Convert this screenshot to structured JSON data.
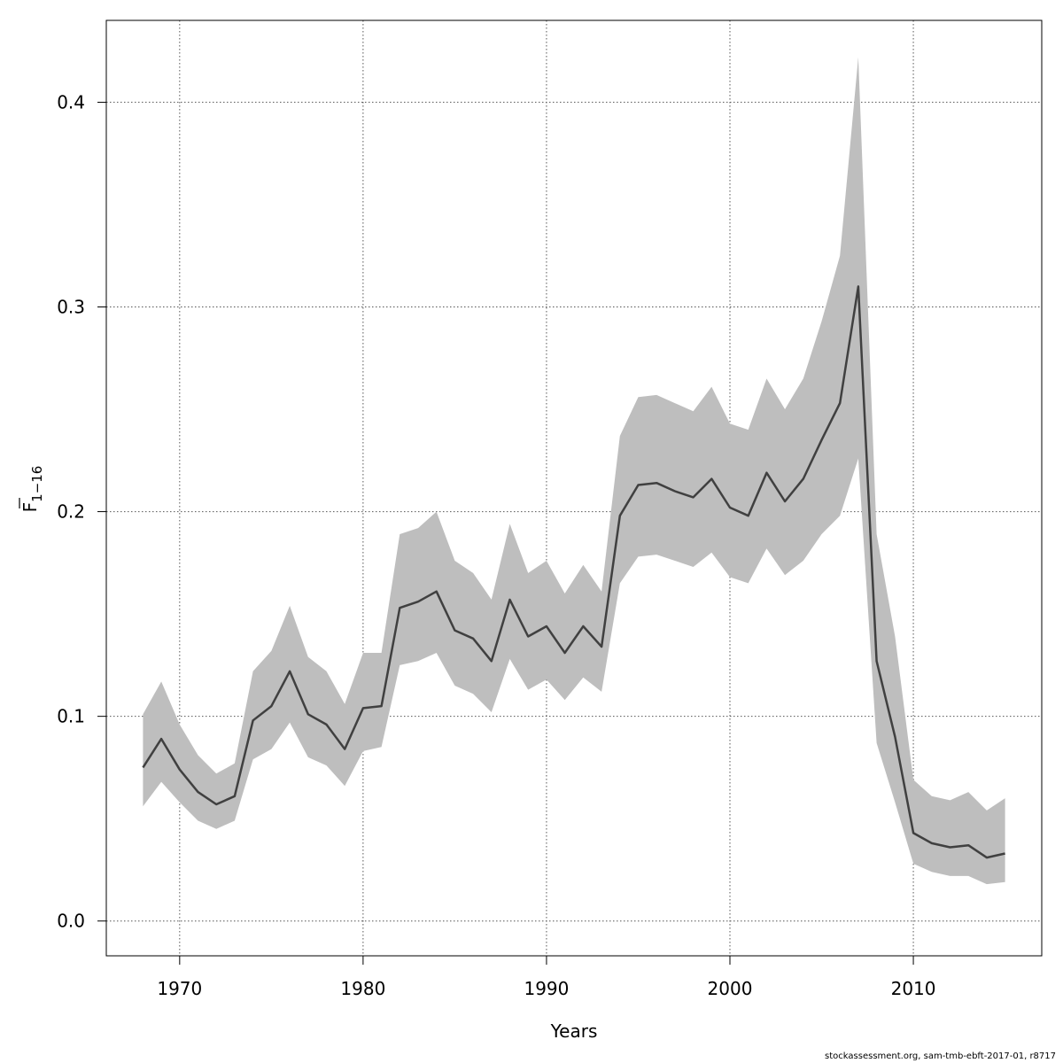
{
  "chart_data": {
    "type": "line",
    "title": "",
    "xlabel": "Years",
    "ylabel": {
      "main": "F",
      "sub": "1−16",
      "overline": true
    },
    "xlim": [
      1966,
      2017
    ],
    "ylim": [
      -0.017,
      0.44
    ],
    "x_ticks": [
      1970,
      1980,
      1990,
      2000,
      2010
    ],
    "y_ticks": [
      0.0,
      0.1,
      0.2,
      0.3,
      0.4
    ],
    "y_tick_labels": [
      "0.0",
      "0.1",
      "0.2",
      "0.3",
      "0.4"
    ],
    "grid": true,
    "colors": {
      "line": "#404040",
      "band": "#bebebe",
      "grid": "#555555",
      "frame": "#000000"
    },
    "x": [
      1968,
      1969,
      1970,
      1971,
      1972,
      1973,
      1974,
      1975,
      1976,
      1977,
      1978,
      1979,
      1980,
      1981,
      1982,
      1983,
      1984,
      1985,
      1986,
      1987,
      1988,
      1989,
      1990,
      1991,
      1992,
      1993,
      1994,
      1995,
      1996,
      1997,
      1998,
      1999,
      2000,
      2001,
      2002,
      2003,
      2004,
      2005,
      2006,
      2007,
      2008,
      2009,
      2010,
      2011,
      2012,
      2013,
      2014,
      2015
    ],
    "series": [
      {
        "role": "estimate",
        "values": [
          0.075,
          0.089,
          0.074,
          0.063,
          0.057,
          0.061,
          0.098,
          0.105,
          0.122,
          0.101,
          0.096,
          0.084,
          0.104,
          0.105,
          0.153,
          0.156,
          0.161,
          0.142,
          0.138,
          0.127,
          0.157,
          0.139,
          0.144,
          0.131,
          0.144,
          0.134,
          0.198,
          0.213,
          0.214,
          0.21,
          0.207,
          0.216,
          0.202,
          0.198,
          0.219,
          0.205,
          0.216,
          0.235,
          0.253,
          0.31,
          0.127,
          0.09,
          0.043,
          0.038,
          0.036,
          0.037,
          0.031,
          0.033
        ]
      },
      {
        "role": "lower",
        "values": [
          0.056,
          0.068,
          0.058,
          0.049,
          0.045,
          0.049,
          0.079,
          0.084,
          0.097,
          0.08,
          0.076,
          0.066,
          0.083,
          0.085,
          0.125,
          0.127,
          0.131,
          0.115,
          0.111,
          0.102,
          0.128,
          0.113,
          0.118,
          0.108,
          0.119,
          0.112,
          0.165,
          0.178,
          0.179,
          0.176,
          0.173,
          0.18,
          0.168,
          0.165,
          0.182,
          0.169,
          0.176,
          0.189,
          0.198,
          0.226,
          0.087,
          0.058,
          0.028,
          0.024,
          0.022,
          0.022,
          0.018,
          0.019
        ]
      },
      {
        "role": "upper",
        "values": [
          0.101,
          0.117,
          0.096,
          0.081,
          0.072,
          0.077,
          0.122,
          0.132,
          0.154,
          0.129,
          0.122,
          0.106,
          0.131,
          0.131,
          0.189,
          0.192,
          0.2,
          0.176,
          0.17,
          0.157,
          0.194,
          0.17,
          0.176,
          0.16,
          0.174,
          0.161,
          0.237,
          0.256,
          0.257,
          0.253,
          0.249,
          0.261,
          0.243,
          0.24,
          0.265,
          0.25,
          0.265,
          0.293,
          0.325,
          0.422,
          0.189,
          0.139,
          0.069,
          0.061,
          0.059,
          0.063,
          0.054,
          0.06
        ]
      }
    ]
  },
  "footer": "stockassessment.org, sam-tmb-ebft-2017-01, r8717"
}
